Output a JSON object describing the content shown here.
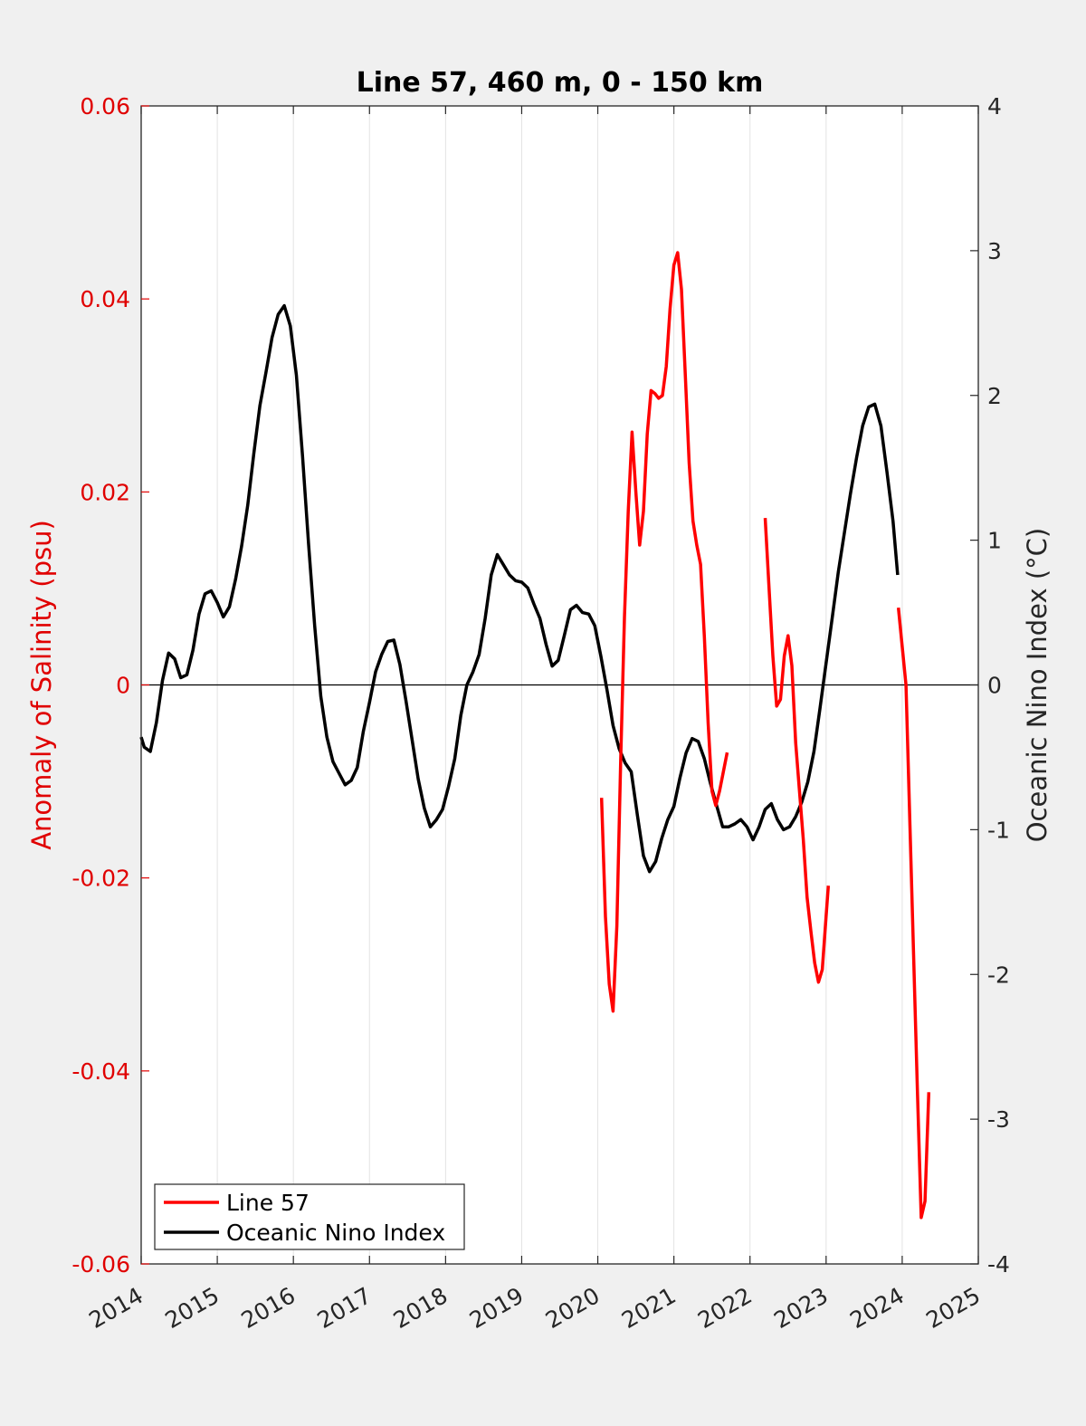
{
  "chart_data": {
    "type": "line",
    "title": "Line 57, 460 m, 0 - 150 km",
    "xlabel": "",
    "ylabel_left": "Anomaly of Salinity (psu)",
    "ylabel_right": "Oceanic Nino Index (°C)",
    "xlim": [
      2014,
      2025
    ],
    "ylim_left": [
      -0.06,
      0.06
    ],
    "ylim_right": [
      -4,
      4
    ],
    "xticks": [
      "2014",
      "2015",
      "2016",
      "2017",
      "2018",
      "2019",
      "2020",
      "2021",
      "2022",
      "2023",
      "2024",
      "2025"
    ],
    "yticks_left": [
      "0.06",
      "0.04",
      "0.02",
      "0",
      "-0.02",
      "-0.04",
      "-0.06"
    ],
    "yticks_right": [
      "4",
      "3",
      "2",
      "1",
      "0",
      "-1",
      "-2",
      "-3",
      "-4"
    ],
    "grid": "vertical",
    "legend_position": "bottom-left",
    "colors": {
      "salinity": "#ff0000",
      "oni": "#000000",
      "axis_left": "#e00000"
    },
    "series": [
      {
        "name": "Line 57",
        "axis": "left",
        "color": "#ff0000",
        "segments": [
          [
            [
              2020.05,
              -0.0117
            ],
            [
              2020.1,
              -0.024
            ],
            [
              2020.15,
              -0.031
            ],
            [
              2020.2,
              -0.0338
            ],
            [
              2020.25,
              -0.025
            ],
            [
              2020.3,
              -0.008
            ],
            [
              2020.35,
              0.007
            ],
            [
              2020.4,
              0.018
            ],
            [
              2020.45,
              0.0262
            ],
            [
              2020.5,
              0.02
            ],
            [
              2020.55,
              0.0145
            ],
            [
              2020.6,
              0.018
            ],
            [
              2020.65,
              0.026
            ],
            [
              2020.7,
              0.0305
            ],
            [
              2020.75,
              0.0302
            ],
            [
              2020.8,
              0.0297
            ],
            [
              2020.85,
              0.03
            ],
            [
              2020.9,
              0.033
            ],
            [
              2020.95,
              0.039
            ],
            [
              2021.0,
              0.0435
            ],
            [
              2021.05,
              0.0448
            ],
            [
              2021.1,
              0.041
            ],
            [
              2021.15,
              0.032
            ],
            [
              2021.2,
              0.023
            ],
            [
              2021.25,
              0.017
            ],
            [
              2021.3,
              0.0145
            ],
            [
              2021.35,
              0.0125
            ],
            [
              2021.4,
              0.005
            ],
            [
              2021.45,
              -0.004
            ],
            [
              2021.5,
              -0.011
            ],
            [
              2021.55,
              -0.0125
            ],
            [
              2021.6,
              -0.011
            ],
            [
              2021.65,
              -0.009
            ],
            [
              2021.7,
              -0.007
            ]
          ],
          [
            [
              2022.2,
              0.0173
            ],
            [
              2022.25,
              0.01
            ],
            [
              2022.3,
              0.003
            ],
            [
              2022.35,
              -0.0022
            ],
            [
              2022.4,
              -0.0015
            ],
            [
              2022.45,
              0.003
            ],
            [
              2022.5,
              0.0051
            ],
            [
              2022.55,
              0.002
            ],
            [
              2022.6,
              -0.006
            ],
            [
              2022.65,
              -0.011
            ],
            [
              2022.7,
              -0.016
            ],
            [
              2022.75,
              -0.022
            ],
            [
              2022.8,
              -0.0255
            ],
            [
              2022.85,
              -0.0288
            ],
            [
              2022.9,
              -0.0308
            ],
            [
              2022.95,
              -0.0295
            ],
            [
              2023.0,
              -0.024
            ],
            [
              2023.03,
              -0.0208
            ]
          ],
          [
            [
              2023.95,
              0.008
            ],
            [
              2024.0,
              0.004
            ],
            [
              2024.05,
              0.0
            ],
            [
              2024.1,
              -0.014
            ],
            [
              2024.15,
              -0.028
            ],
            [
              2024.2,
              -0.042
            ],
            [
              2024.25,
              -0.0552
            ],
            [
              2024.3,
              -0.0535
            ],
            [
              2024.35,
              -0.0422
            ]
          ]
        ]
      },
      {
        "name": "Oceanic Nino Index",
        "axis": "right",
        "color": "#000000",
        "segments": [
          [
            [
              2014.0,
              -0.36
            ],
            [
              2014.04,
              -0.43
            ],
            [
              2014.12,
              -0.46
            ],
            [
              2014.2,
              -0.26
            ],
            [
              2014.28,
              0.03
            ],
            [
              2014.36,
              0.22
            ],
            [
              2014.44,
              0.18
            ],
            [
              2014.52,
              0.05
            ],
            [
              2014.6,
              0.07
            ],
            [
              2014.68,
              0.24
            ],
            [
              2014.76,
              0.49
            ],
            [
              2014.84,
              0.63
            ],
            [
              2014.92,
              0.65
            ],
            [
              2015.0,
              0.57
            ],
            [
              2015.08,
              0.47
            ],
            [
              2015.16,
              0.54
            ],
            [
              2015.24,
              0.73
            ],
            [
              2015.32,
              0.96
            ],
            [
              2015.4,
              1.24
            ],
            [
              2015.48,
              1.6
            ],
            [
              2015.56,
              1.93
            ],
            [
              2015.64,
              2.16
            ],
            [
              2015.72,
              2.4
            ],
            [
              2015.8,
              2.56
            ],
            [
              2015.88,
              2.62
            ],
            [
              2015.96,
              2.48
            ],
            [
              2016.04,
              2.14
            ],
            [
              2016.12,
              1.58
            ],
            [
              2016.2,
              0.97
            ],
            [
              2016.28,
              0.41
            ],
            [
              2016.36,
              -0.08
            ],
            [
              2016.44,
              -0.36
            ],
            [
              2016.52,
              -0.53
            ],
            [
              2016.6,
              -0.61
            ],
            [
              2016.68,
              -0.69
            ],
            [
              2016.76,
              -0.66
            ],
            [
              2016.84,
              -0.57
            ],
            [
              2016.92,
              -0.32
            ],
            [
              2017.0,
              -0.12
            ],
            [
              2017.08,
              0.09
            ],
            [
              2017.16,
              0.21
            ],
            [
              2017.24,
              0.3
            ],
            [
              2017.32,
              0.31
            ],
            [
              2017.4,
              0.14
            ],
            [
              2017.48,
              -0.11
            ],
            [
              2017.56,
              -0.38
            ],
            [
              2017.64,
              -0.65
            ],
            [
              2017.72,
              -0.85
            ],
            [
              2017.8,
              -0.98
            ],
            [
              2017.88,
              -0.93
            ],
            [
              2017.96,
              -0.86
            ],
            [
              2018.04,
              -0.7
            ],
            [
              2018.12,
              -0.51
            ],
            [
              2018.2,
              -0.21
            ],
            [
              2018.28,
              0.0
            ],
            [
              2018.36,
              0.09
            ],
            [
              2018.44,
              0.21
            ],
            [
              2018.52,
              0.46
            ],
            [
              2018.6,
              0.76
            ],
            [
              2018.68,
              0.9
            ],
            [
              2018.76,
              0.83
            ],
            [
              2018.84,
              0.76
            ],
            [
              2018.92,
              0.72
            ],
            [
              2019.0,
              0.71
            ],
            [
              2019.08,
              0.67
            ],
            [
              2019.16,
              0.56
            ],
            [
              2019.24,
              0.46
            ],
            [
              2019.32,
              0.28
            ],
            [
              2019.4,
              0.13
            ],
            [
              2019.48,
              0.17
            ],
            [
              2019.56,
              0.34
            ],
            [
              2019.64,
              0.52
            ],
            [
              2019.72,
              0.55
            ],
            [
              2019.8,
              0.5
            ],
            [
              2019.88,
              0.49
            ],
            [
              2019.96,
              0.41
            ],
            [
              2020.04,
              0.2
            ],
            [
              2020.12,
              -0.03
            ],
            [
              2020.2,
              -0.28
            ],
            [
              2020.28,
              -0.44
            ],
            [
              2020.36,
              -0.54
            ],
            [
              2020.44,
              -0.6
            ],
            [
              2020.52,
              -0.9
            ],
            [
              2020.6,
              -1.18
            ],
            [
              2020.68,
              -1.29
            ],
            [
              2020.76,
              -1.22
            ],
            [
              2020.84,
              -1.06
            ],
            [
              2020.92,
              -0.93
            ],
            [
              2021.0,
              -0.84
            ],
            [
              2021.08,
              -0.64
            ],
            [
              2021.16,
              -0.47
            ],
            [
              2021.24,
              -0.37
            ],
            [
              2021.32,
              -0.39
            ],
            [
              2021.4,
              -0.51
            ],
            [
              2021.48,
              -0.68
            ],
            [
              2021.56,
              -0.83
            ],
            [
              2021.64,
              -0.98
            ],
            [
              2021.72,
              -0.98
            ],
            [
              2021.8,
              -0.96
            ],
            [
              2021.88,
              -0.93
            ],
            [
              2021.96,
              -0.98
            ],
            [
              2022.04,
              -1.07
            ],
            [
              2022.12,
              -0.98
            ],
            [
              2022.2,
              -0.86
            ],
            [
              2022.28,
              -0.82
            ],
            [
              2022.36,
              -0.93
            ],
            [
              2022.44,
              -1.0
            ],
            [
              2022.52,
              -0.98
            ],
            [
              2022.6,
              -0.91
            ],
            [
              2022.68,
              -0.81
            ],
            [
              2022.76,
              -0.67
            ],
            [
              2022.84,
              -0.46
            ],
            [
              2022.92,
              -0.16
            ],
            [
              2023.0,
              0.15
            ],
            [
              2023.08,
              0.46
            ],
            [
              2023.16,
              0.78
            ],
            [
              2023.24,
              1.05
            ],
            [
              2023.32,
              1.32
            ],
            [
              2023.4,
              1.57
            ],
            [
              2023.48,
              1.79
            ],
            [
              2023.56,
              1.92
            ],
            [
              2023.64,
              1.94
            ],
            [
              2023.72,
              1.79
            ],
            [
              2023.8,
              1.47
            ],
            [
              2023.88,
              1.13
            ],
            [
              2023.94,
              0.76
            ]
          ]
        ]
      }
    ]
  },
  "legend": {
    "items": [
      {
        "label": "Line 57",
        "color": "#ff0000"
      },
      {
        "label": "Oceanic Nino Index",
        "color": "#000000"
      }
    ]
  }
}
